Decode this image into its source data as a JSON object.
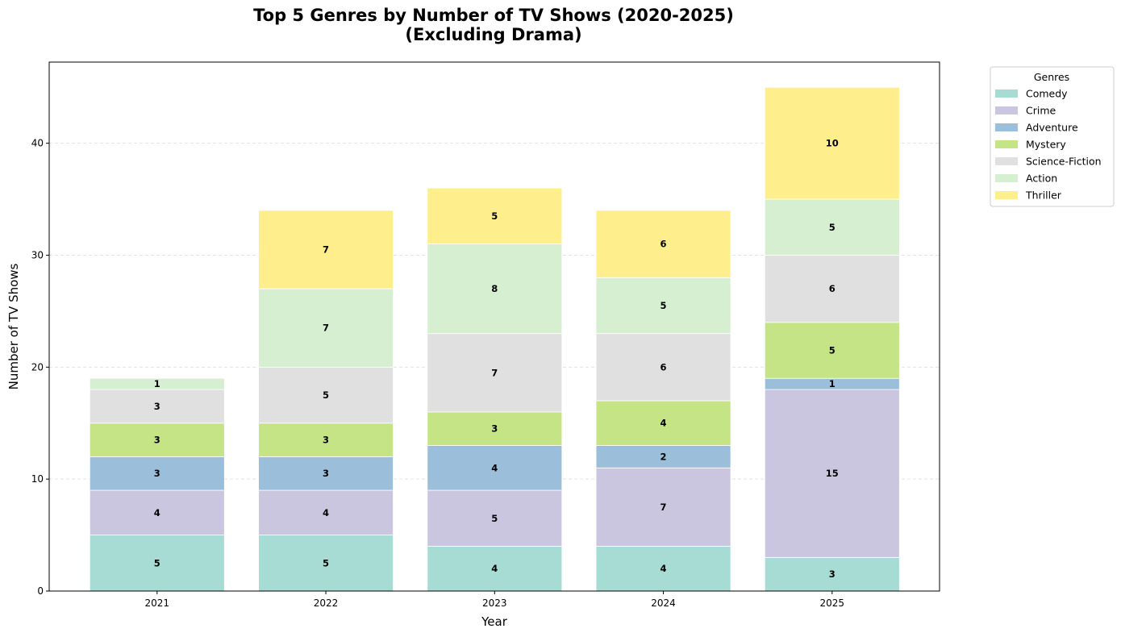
{
  "chart_data": {
    "type": "bar",
    "stacked": true,
    "title": "Top 5 Genres by Number of TV Shows (2020-2025)",
    "subtitle": "(Excluding Drama)",
    "xlabel": "Year",
    "ylabel": "Number of TV Shows",
    "categories": [
      "2021",
      "2022",
      "2023",
      "2024",
      "2025"
    ],
    "ylim": [
      0,
      47.25
    ],
    "yticks": [
      0,
      10,
      20,
      30,
      40
    ],
    "grid": "y-dashed",
    "legend": {
      "title": "Genres",
      "placement": "outside-top-right"
    },
    "series": [
      {
        "name": "Comedy",
        "color": "#a6dcd3",
        "values": [
          5,
          5,
          4,
          4,
          3
        ]
      },
      {
        "name": "Crime",
        "color": "#cbc6e0",
        "values": [
          4,
          4,
          5,
          7,
          15
        ]
      },
      {
        "name": "Adventure",
        "color": "#9bbfda",
        "values": [
          3,
          3,
          4,
          2,
          1
        ]
      },
      {
        "name": "Mystery",
        "color": "#c4e486",
        "values": [
          3,
          3,
          3,
          4,
          5
        ]
      },
      {
        "name": "Science-Fiction",
        "color": "#e0e0e0",
        "values": [
          3,
          5,
          7,
          6,
          6
        ]
      },
      {
        "name": "Action",
        "color": "#d5efd0",
        "values": [
          1,
          7,
          8,
          5,
          5
        ]
      },
      {
        "name": "Thriller",
        "color": "#ffee8c",
        "values": [
          0,
          7,
          5,
          6,
          10
        ]
      }
    ]
  }
}
